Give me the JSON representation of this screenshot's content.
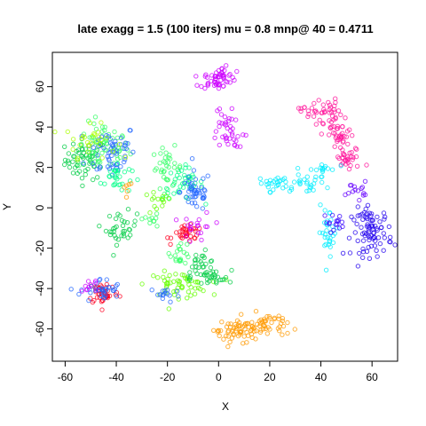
{
  "chart_data": {
    "type": "scatter",
    "title": "late exagg = 1.5 (100 iters) mu = 0.8 mnp@ 40 = 0.4711",
    "xlabel": "X",
    "ylabel": "Y",
    "xlim": [
      -65,
      70
    ],
    "ylim": [
      -76,
      77
    ],
    "xticks": [
      -60,
      -40,
      -20,
      0,
      20,
      40,
      60
    ],
    "yticks": [
      -60,
      -40,
      -20,
      0,
      20,
      40,
      60
    ],
    "grid": false,
    "legend": "none",
    "marker": "open-circle",
    "clusters": [
      {
        "color": "#00cc44",
        "cx": -52,
        "cy": 24,
        "sx": 4,
        "sy": 5,
        "n": 60
      },
      {
        "color": "#33ff66",
        "cx": -45,
        "cy": 30,
        "sx": 5,
        "sy": 6,
        "n": 60
      },
      {
        "color": "#2266ff",
        "cx": -42,
        "cy": 28,
        "sx": 5,
        "sy": 7,
        "n": 55
      },
      {
        "color": "#aaff00",
        "cx": -50,
        "cy": 33,
        "sx": 5,
        "sy": 4,
        "n": 30
      },
      {
        "color": "#00ff88",
        "cx": -40,
        "cy": 15,
        "sx": 3,
        "sy": 4,
        "n": 30
      },
      {
        "color": "#00cc44",
        "cx": -38,
        "cy": -10,
        "sx": 3,
        "sy": 4,
        "n": 35
      },
      {
        "color": "#33ff66",
        "cx": -20,
        "cy": 20,
        "sx": 3,
        "sy": 5,
        "n": 35
      },
      {
        "color": "#00ff88",
        "cx": -14,
        "cy": 12,
        "sx": 4,
        "sy": 4,
        "n": 40
      },
      {
        "color": "#2266ff",
        "cx": -9,
        "cy": 8,
        "sx": 3,
        "sy": 5,
        "n": 45
      },
      {
        "color": "#66ff00",
        "cx": -24,
        "cy": 2,
        "sx": 3,
        "sy": 3,
        "n": 15
      },
      {
        "color": "#33ff66",
        "cx": -27,
        "cy": -6,
        "sx": 2,
        "sy": 2,
        "n": 10
      },
      {
        "color": "#ff0022",
        "cx": -12,
        "cy": -13,
        "sx": 3,
        "sy": 2,
        "n": 35
      },
      {
        "color": "#cc00ff",
        "cx": -8,
        "cy": -10,
        "sx": 3,
        "sy": 4,
        "n": 20
      },
      {
        "color": "#33ff66",
        "cx": -15,
        "cy": -22,
        "sx": 2,
        "sy": 3,
        "n": 20
      },
      {
        "color": "#00cc44",
        "cx": -7,
        "cy": -28,
        "sx": 3,
        "sy": 3,
        "n": 25
      },
      {
        "color": "#66ff00",
        "cx": -16,
        "cy": -38,
        "sx": 6,
        "sy": 3,
        "n": 55
      },
      {
        "color": "#00cc44",
        "cx": -3,
        "cy": -35,
        "sx": 4,
        "sy": 2,
        "n": 30
      },
      {
        "color": "#2266ff",
        "cx": -21,
        "cy": -43,
        "sx": 3,
        "sy": 2,
        "n": 15
      },
      {
        "color": "#ff0022",
        "cx": -45,
        "cy": -42,
        "sx": 3,
        "sy": 3,
        "n": 45
      },
      {
        "color": "#2266ff",
        "cx": -46,
        "cy": -41,
        "sx": 4,
        "sy": 3,
        "n": 35
      },
      {
        "color": "#cc00ff",
        "cx": -50,
        "cy": -38,
        "sx": 2,
        "sy": 2,
        "n": 10
      },
      {
        "color": "#cc00ff",
        "cx": -1,
        "cy": 63,
        "sx": 3,
        "sy": 2,
        "n": 40
      },
      {
        "color": "#cc00ff",
        "cx": 1,
        "cy": 67,
        "sx": 3,
        "sy": 1.5,
        "n": 15
      },
      {
        "color": "#cc00ff",
        "cx": 2,
        "cy": 42,
        "sx": 2,
        "sy": 4,
        "n": 20
      },
      {
        "color": "#cc00ff",
        "cx": 4,
        "cy": 34,
        "sx": 3,
        "sy": 2,
        "n": 20
      },
      {
        "color": "#ff1199",
        "cx": 40,
        "cy": 48,
        "sx": 4,
        "sy": 3,
        "n": 40
      },
      {
        "color": "#ff1199",
        "cx": 47,
        "cy": 36,
        "sx": 3,
        "sy": 4,
        "n": 40
      },
      {
        "color": "#ff1199",
        "cx": 51,
        "cy": 24,
        "sx": 3,
        "sy": 3,
        "n": 30
      },
      {
        "color": "#6600ff",
        "cx": 54,
        "cy": 9,
        "sx": 2,
        "sy": 2,
        "n": 15
      },
      {
        "color": "#00eeff",
        "cx": 22,
        "cy": 12,
        "sx": 3,
        "sy": 2,
        "n": 25
      },
      {
        "color": "#00eeff",
        "cx": 34,
        "cy": 12,
        "sx": 4,
        "sy": 2,
        "n": 25
      },
      {
        "color": "#00eeff",
        "cx": 40,
        "cy": 19,
        "sx": 3,
        "sy": 1.5,
        "n": 15
      },
      {
        "color": "#00eeff",
        "cx": 43,
        "cy": -12,
        "sx": 2,
        "sy": 6,
        "n": 30
      },
      {
        "color": "#3300ff",
        "cx": 45,
        "cy": -7,
        "sx": 2,
        "sy": 2,
        "n": 15
      },
      {
        "color": "#2200ee",
        "cx": 60,
        "cy": -12,
        "sx": 4,
        "sy": 6,
        "n": 85
      },
      {
        "color": "#ff9900",
        "cx": 10,
        "cy": -60,
        "sx": 5,
        "sy": 3,
        "n": 50
      },
      {
        "color": "#ff9900",
        "cx": 19,
        "cy": -58,
        "sx": 4,
        "sy": 3,
        "n": 40
      },
      {
        "color": "#ff9900",
        "cx": 3,
        "cy": -63,
        "sx": 3,
        "sy": 2,
        "n": 15
      },
      {
        "color": "#ff9900",
        "cx": -36,
        "cy": 10,
        "sx": 2,
        "sy": 2,
        "n": 6
      }
    ]
  }
}
